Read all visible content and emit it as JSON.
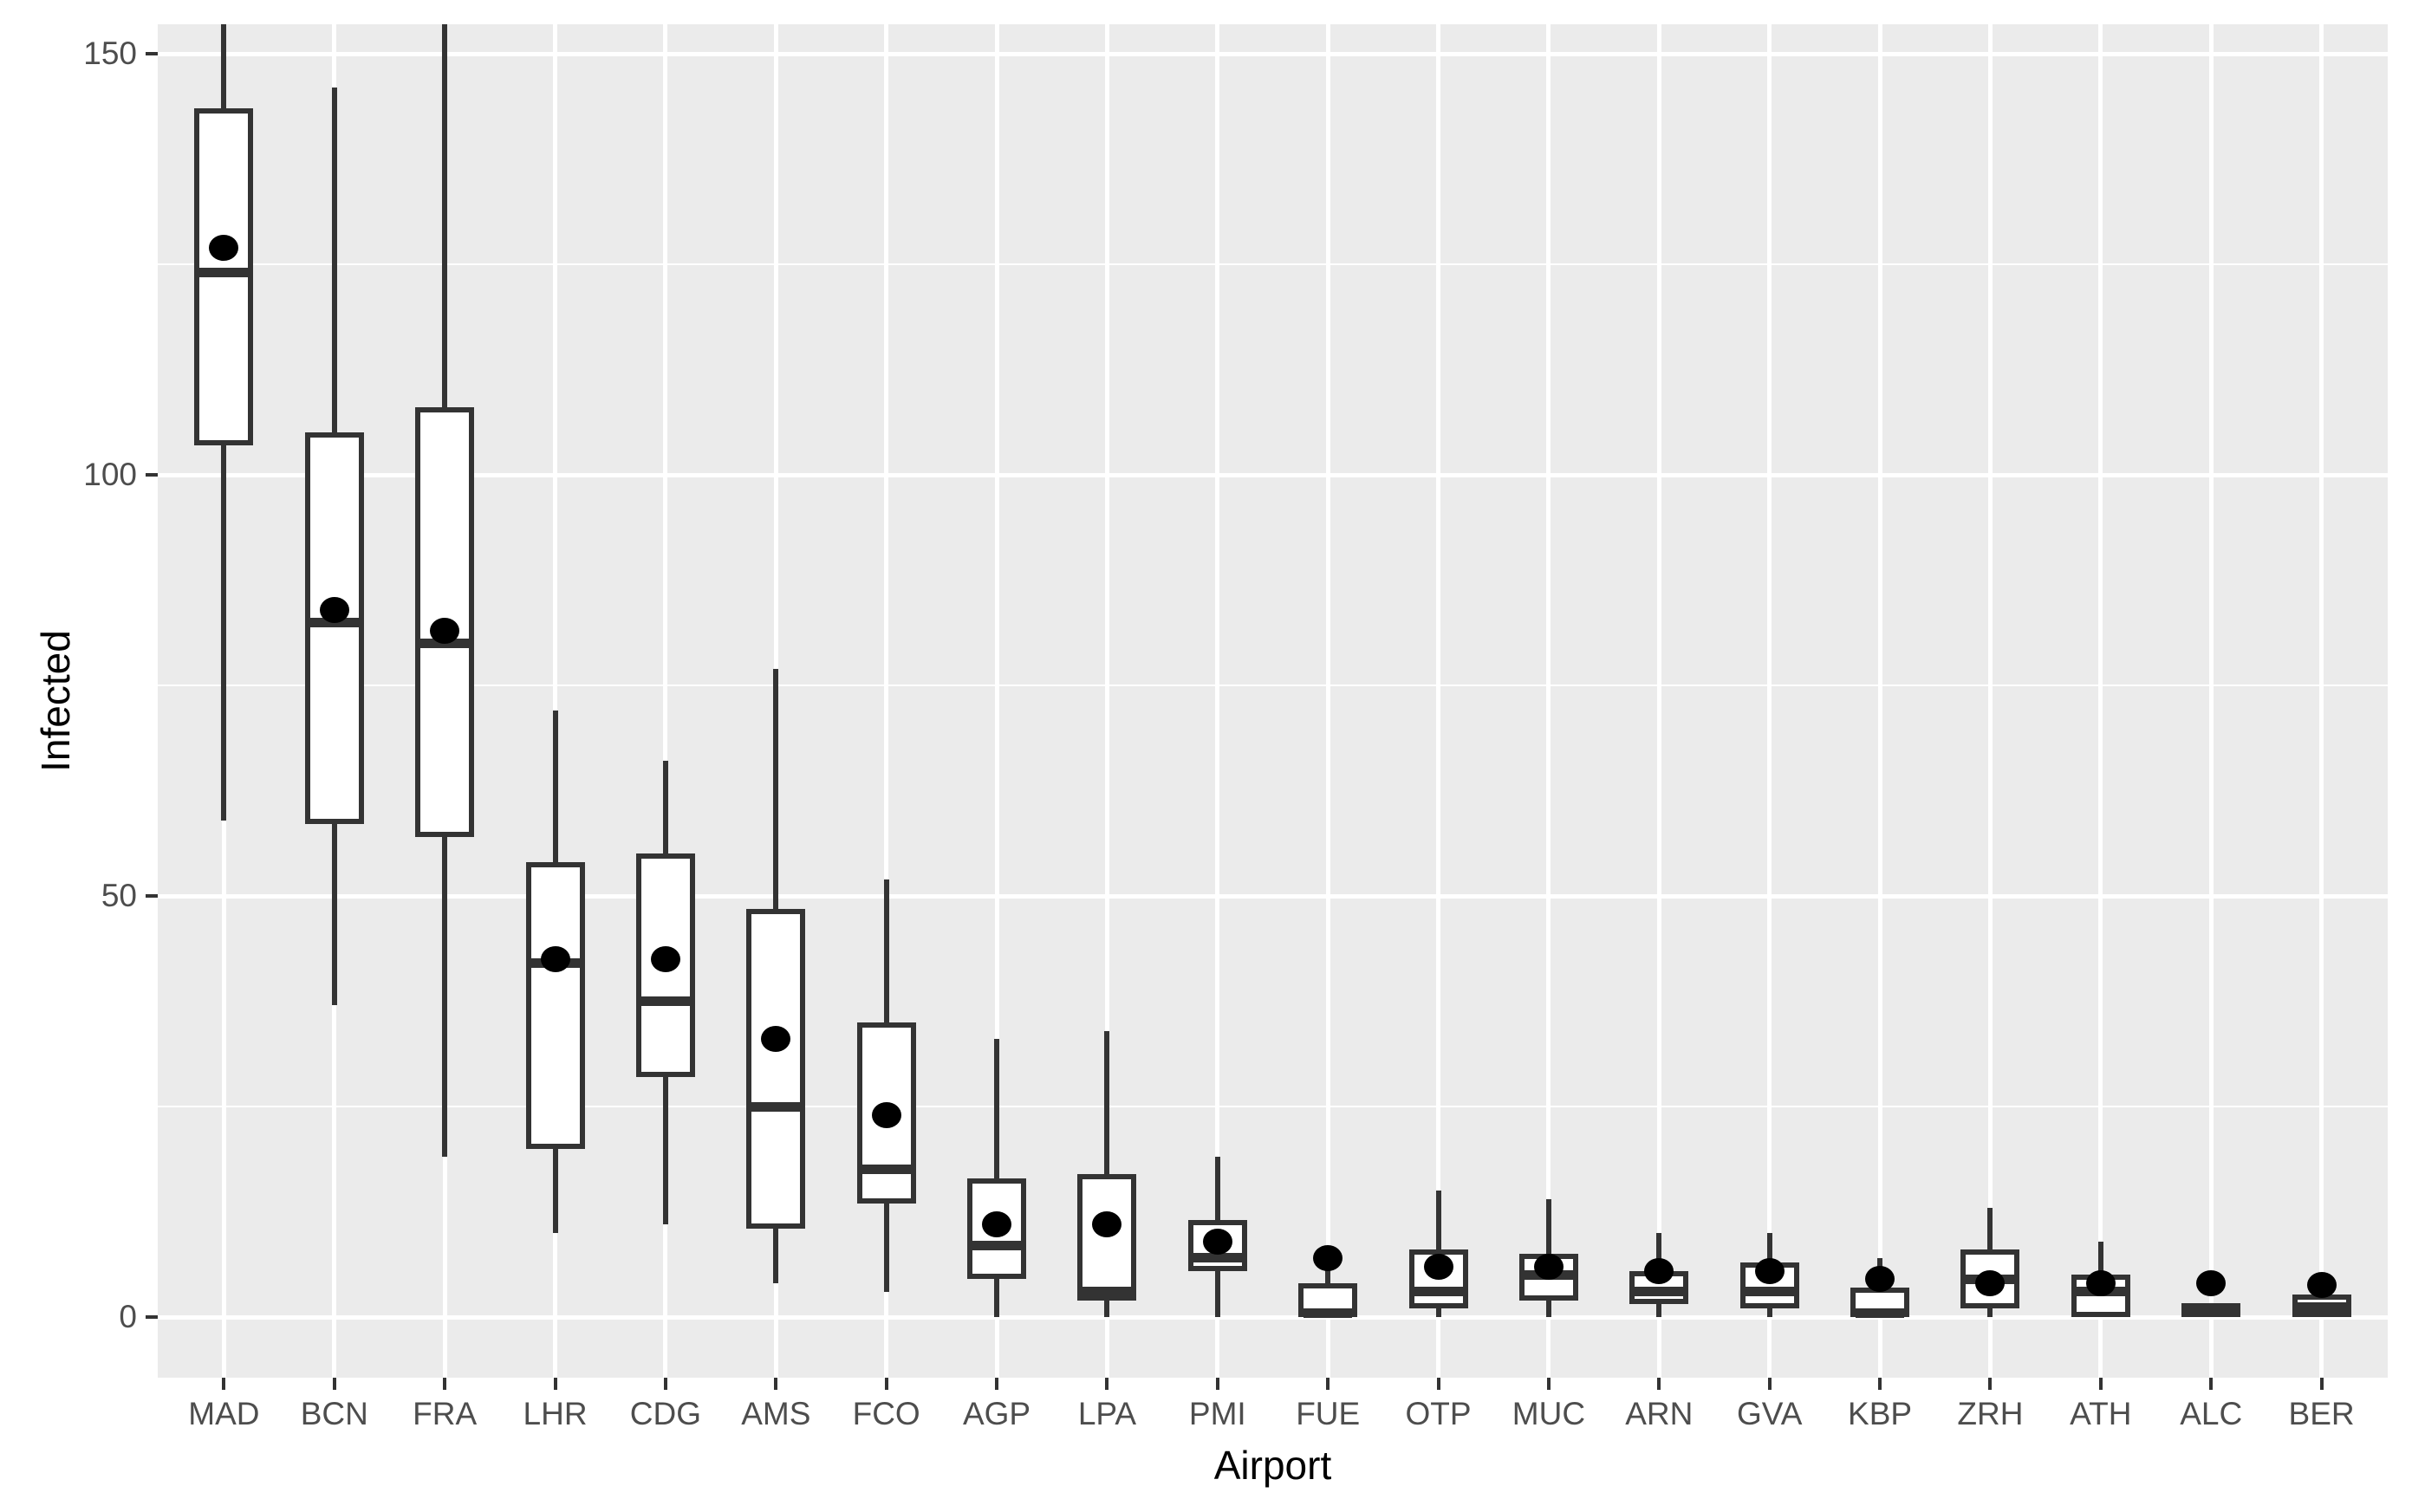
{
  "page": {
    "background": "#FFFFFF"
  },
  "chart_data": {
    "type": "boxplot",
    "title": "",
    "xlabel": "Airport",
    "ylabel": "Infected",
    "categories": [
      "MAD",
      "BCN",
      "FRA",
      "LHR",
      "CDG",
      "AMS",
      "FCO",
      "AGP",
      "LPA",
      "PMI",
      "FUE",
      "OTP",
      "MUC",
      "ARN",
      "GVA",
      "KBP",
      "ZRH",
      "ATH",
      "ALC",
      "BER"
    ],
    "yticks": [
      0,
      50,
      100,
      150
    ],
    "minor_gridlines": [
      25,
      75,
      125
    ],
    "ylim": [
      -7.2,
      153.5
    ],
    "grid": true,
    "legend": "none",
    "panel_bg": "#EBEBEB",
    "grid_color": "#FFFFFF",
    "box_outline_color": "#333333",
    "box_fill": "#FFFFFF",
    "mean_point_color": "#000000",
    "axis_text_color": "#4D4D4D",
    "series": [
      {
        "airport": "MAD",
        "min": 59,
        "q1": 103.5,
        "median": 124,
        "q3": 143.5,
        "max": 154,
        "mean": 127,
        "max_clipped": true
      },
      {
        "airport": "BCN",
        "min": 37,
        "q1": 58.5,
        "median": 82.5,
        "q3": 105,
        "max": 146,
        "mean": 84,
        "max_clipped": false
      },
      {
        "airport": "FRA",
        "min": 19,
        "q1": 57,
        "median": 80,
        "q3": 108,
        "max": 154,
        "mean": 81.5,
        "max_clipped": true
      },
      {
        "airport": "LHR",
        "min": 10,
        "q1": 20,
        "median": 42,
        "q3": 54,
        "max": 72,
        "mean": 42.5,
        "max_clipped": false
      },
      {
        "airport": "CDG",
        "min": 11,
        "q1": 28.5,
        "median": 37.5,
        "q3": 55,
        "max": 66,
        "mean": 42.5,
        "max_clipped": false
      },
      {
        "airport": "AMS",
        "min": 4,
        "q1": 10.5,
        "median": 25,
        "q3": 48.5,
        "max": 77,
        "mean": 33,
        "max_clipped": false
      },
      {
        "airport": "FCO",
        "min": 3,
        "q1": 13.5,
        "median": 17.5,
        "q3": 35,
        "max": 52,
        "mean": 24,
        "max_clipped": false
      },
      {
        "airport": "AGP",
        "min": 0,
        "q1": 4.5,
        "median": 8.5,
        "q3": 16.5,
        "max": 33,
        "mean": 11,
        "max_clipped": false
      },
      {
        "airport": "LPA",
        "min": 0,
        "q1": 2,
        "median": 3,
        "q3": 17,
        "max": 34,
        "mean": 11,
        "max_clipped": false
      },
      {
        "airport": "PMI",
        "min": 0,
        "q1": 5.5,
        "median": 7,
        "q3": 11.5,
        "max": 19,
        "mean": 9,
        "max_clipped": false
      },
      {
        "airport": "FUE",
        "min": 0,
        "q1": 0,
        "median": 0.5,
        "q3": 4,
        "max": 6,
        "mean": 7,
        "max_clipped": false
      },
      {
        "airport": "OTP",
        "min": 0,
        "q1": 1,
        "median": 3,
        "q3": 8,
        "max": 15,
        "mean": 6,
        "max_clipped": false
      },
      {
        "airport": "MUC",
        "min": 0,
        "q1": 2,
        "median": 5,
        "q3": 7.5,
        "max": 14,
        "mean": 6,
        "max_clipped": false
      },
      {
        "airport": "ARN",
        "min": 0,
        "q1": 1.5,
        "median": 3,
        "q3": 5.5,
        "max": 10,
        "mean": 5.5,
        "max_clipped": false
      },
      {
        "airport": "GVA",
        "min": 0,
        "q1": 1,
        "median": 3,
        "q3": 6.5,
        "max": 10,
        "mean": 5.5,
        "max_clipped": false
      },
      {
        "airport": "KBP",
        "min": 0,
        "q1": 0,
        "median": 0.5,
        "q3": 3.5,
        "max": 7,
        "mean": 4.5,
        "max_clipped": false
      },
      {
        "airport": "ZRH",
        "min": 0,
        "q1": 1,
        "median": 4.5,
        "q3": 8,
        "max": 13,
        "mean": 4,
        "max_clipped": false
      },
      {
        "airport": "ATH",
        "min": 0,
        "q1": 0,
        "median": 3,
        "q3": 5,
        "max": 9,
        "mean": 4,
        "max_clipped": false
      },
      {
        "airport": "ALC",
        "min": 0,
        "q1": 0,
        "median": 1,
        "q3": 1.6,
        "max": 1.6,
        "mean": 4,
        "max_clipped": false
      },
      {
        "airport": "BER",
        "min": 0,
        "q1": 0,
        "median": 1.2,
        "q3": 2.7,
        "max": 3,
        "mean": 3.8,
        "max_clipped": false
      }
    ]
  }
}
